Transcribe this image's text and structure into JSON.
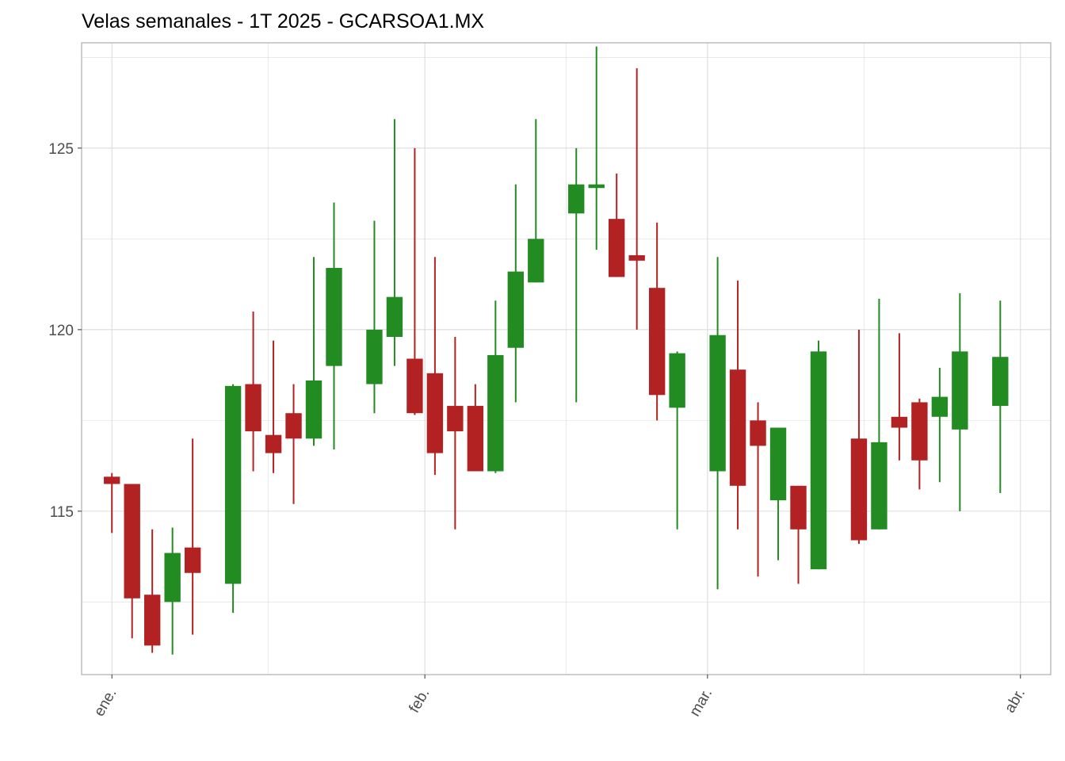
{
  "chart_data": {
    "type": "candlestick",
    "title": "Velas semanales - 1T 2025 - GCARSOA1.MX",
    "xlabel": "",
    "ylabel": "",
    "x_ticks": [
      {
        "label": "ene.",
        "date": "2025-01-01"
      },
      {
        "label": "feb.",
        "date": "2025-02-01"
      },
      {
        "label": "mar.",
        "date": "2025-03-01"
      },
      {
        "label": "abr.",
        "date": "2025-04-01"
      }
    ],
    "y_ticks": [
      115,
      120,
      125
    ],
    "ylim": [
      110.5,
      127.9
    ],
    "xlim": [
      "2024-12-29",
      "2025-04-04"
    ],
    "grid": true,
    "colors": {
      "up": "#228B22",
      "down": "#B22222",
      "grid": "#dcdcdc",
      "panel_border": "#b3b3b3"
    },
    "candles": [
      {
        "date": "2025-01-01",
        "open": 115.95,
        "high": 116.05,
        "low": 114.4,
        "close": 115.75
      },
      {
        "date": "2025-01-03",
        "open": 115.75,
        "high": 115.75,
        "low": 111.5,
        "close": 112.6
      },
      {
        "date": "2025-01-05",
        "open": 112.7,
        "high": 114.5,
        "low": 111.1,
        "close": 111.3
      },
      {
        "date": "2025-01-07",
        "open": 112.5,
        "high": 114.55,
        "low": 111.05,
        "close": 113.85
      },
      {
        "date": "2025-01-09",
        "open": 114.0,
        "high": 117.0,
        "low": 111.6,
        "close": 113.3
      },
      {
        "date": "2025-01-13",
        "open": 113.0,
        "high": 118.5,
        "low": 112.2,
        "close": 118.45
      },
      {
        "date": "2025-01-15",
        "open": 118.5,
        "high": 120.5,
        "low": 116.1,
        "close": 117.2
      },
      {
        "date": "2025-01-17",
        "open": 117.1,
        "high": 119.7,
        "low": 116.05,
        "close": 116.6
      },
      {
        "date": "2025-01-19",
        "open": 117.7,
        "high": 118.5,
        "low": 115.2,
        "close": 117.0
      },
      {
        "date": "2025-01-21",
        "open": 117.0,
        "high": 122.0,
        "low": 116.8,
        "close": 118.6
      },
      {
        "date": "2025-01-23",
        "open": 119.0,
        "high": 123.5,
        "low": 116.7,
        "close": 121.7
      },
      {
        "date": "2025-01-27",
        "open": 118.5,
        "high": 123.0,
        "low": 117.7,
        "close": 120.0
      },
      {
        "date": "2025-01-29",
        "open": 119.8,
        "high": 125.8,
        "low": 119.0,
        "close": 120.9
      },
      {
        "date": "2025-01-31",
        "open": 119.2,
        "high": 125.0,
        "low": 117.65,
        "close": 117.7
      },
      {
        "date": "2025-02-02",
        "open": 118.8,
        "high": 122.0,
        "low": 116.0,
        "close": 116.6
      },
      {
        "date": "2025-02-04",
        "open": 117.9,
        "high": 119.8,
        "low": 114.5,
        "close": 117.2
      },
      {
        "date": "2025-02-06",
        "open": 117.9,
        "high": 118.5,
        "low": 116.1,
        "close": 116.1
      },
      {
        "date": "2025-02-08",
        "open": 116.1,
        "high": 120.8,
        "low": 116.05,
        "close": 119.3
      },
      {
        "date": "2025-02-10",
        "open": 119.5,
        "high": 124.0,
        "low": 118.0,
        "close": 121.6
      },
      {
        "date": "2025-02-12",
        "open": 121.3,
        "high": 125.8,
        "low": 121.3,
        "close": 122.5
      },
      {
        "date": "2025-02-16",
        "open": 123.2,
        "high": 125.0,
        "low": 118.0,
        "close": 124.0
      },
      {
        "date": "2025-02-18",
        "open": 123.9,
        "high": 127.8,
        "low": 122.2,
        "close": 124.0
      },
      {
        "date": "2025-02-20",
        "open": 123.05,
        "high": 124.3,
        "low": 121.45,
        "close": 121.45
      },
      {
        "date": "2025-02-22",
        "open": 122.05,
        "high": 127.2,
        "low": 120.0,
        "close": 121.9
      },
      {
        "date": "2025-02-24",
        "open": 121.15,
        "high": 122.95,
        "low": 117.5,
        "close": 118.2
      },
      {
        "date": "2025-02-26",
        "open": 117.85,
        "high": 119.4,
        "low": 114.5,
        "close": 119.35
      },
      {
        "date": "2025-03-02",
        "open": 116.1,
        "high": 122.0,
        "low": 112.85,
        "close": 119.85
      },
      {
        "date": "2025-03-04",
        "open": 118.9,
        "high": 121.35,
        "low": 114.5,
        "close": 115.7
      },
      {
        "date": "2025-03-06",
        "open": 117.5,
        "high": 118.0,
        "low": 113.2,
        "close": 116.8
      },
      {
        "date": "2025-03-08",
        "open": 115.3,
        "high": 117.3,
        "low": 113.65,
        "close": 117.3
      },
      {
        "date": "2025-03-10",
        "open": 115.7,
        "high": 115.7,
        "low": 113.0,
        "close": 114.5
      },
      {
        "date": "2025-03-12",
        "open": 113.4,
        "high": 119.7,
        "low": 113.4,
        "close": 119.4
      },
      {
        "date": "2025-03-16",
        "open": 117.0,
        "high": 120.0,
        "low": 114.1,
        "close": 114.2
      },
      {
        "date": "2025-03-18",
        "open": 114.5,
        "high": 120.85,
        "low": 114.5,
        "close": 116.9
      },
      {
        "date": "2025-03-20",
        "open": 117.6,
        "high": 119.9,
        "low": 116.4,
        "close": 117.3
      },
      {
        "date": "2025-03-22",
        "open": 118.0,
        "high": 118.1,
        "low": 115.6,
        "close": 116.4
      },
      {
        "date": "2025-03-24",
        "open": 117.6,
        "high": 118.95,
        "low": 115.8,
        "close": 118.15
      },
      {
        "date": "2025-03-26",
        "open": 117.25,
        "high": 121.0,
        "low": 115.0,
        "close": 119.4
      },
      {
        "date": "2025-03-30",
        "open": 117.9,
        "high": 120.8,
        "low": 115.5,
        "close": 119.25
      }
    ]
  }
}
